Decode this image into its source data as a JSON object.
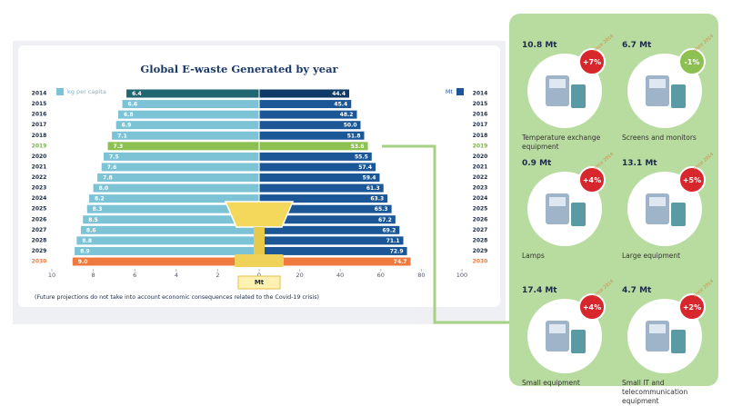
{
  "chart_data": {
    "type": "butterfly",
    "title": "Global E-waste Generated by year",
    "categories": [
      "2014",
      "2015",
      "2016",
      "2017",
      "2018",
      "2019",
      "2020",
      "2021",
      "2022",
      "2023",
      "2024",
      "2025",
      "2026",
      "2027",
      "2028",
      "2029",
      "2030"
    ],
    "series": [
      {
        "name": "kg per capita",
        "color": "#7cc3d6",
        "side": "left",
        "values": [
          6.4,
          6.6,
          6.8,
          6.9,
          7.1,
          7.3,
          7.5,
          7.6,
          7.8,
          8.0,
          8.2,
          8.3,
          8.5,
          8.6,
          8.8,
          8.9,
          9.0
        ],
        "value_labels": [
          "6.4",
          "6.6",
          "6.8",
          "6.9",
          "7.1",
          "7.3",
          "7.5",
          "7.6",
          "7.8",
          "8.0",
          "8.2",
          "8.3",
          "8.5",
          "8.6",
          "8.8",
          "8.9",
          "9.0"
        ],
        "xlim": [
          0,
          10
        ],
        "xticks": [
          10,
          8,
          6,
          4,
          2
        ]
      },
      {
        "name": "Mt",
        "color": "#1b5796",
        "side": "right",
        "values": [
          44.4,
          45.4,
          48.2,
          50.0,
          51.8,
          53.6,
          55.5,
          57.4,
          59.4,
          61.3,
          63.3,
          65.3,
          67.2,
          69.2,
          71.1,
          72.9,
          74.7
        ],
        "value_labels": [
          "44.4",
          "45.4",
          "48.2",
          "50.0",
          "51.8",
          "53.6",
          "55.5",
          "57.4",
          "59.4",
          "61.3",
          "63.3",
          "65.3",
          "67.2",
          "69.2",
          "71.1",
          "72.9",
          "74.7"
        ],
        "xlim": [
          0,
          100
        ],
        "xticks": [
          0,
          20,
          40,
          60,
          80,
          100
        ]
      }
    ],
    "highlights": [
      {
        "index": 0,
        "left": "#1f6670",
        "right": "#0e3a68"
      },
      {
        "index": 5,
        "left": "#8cc152",
        "right": "#8cc152",
        "year_color": "#7ab342"
      },
      {
        "index": 16,
        "left": "#f07a3e",
        "right": "#f07a3e",
        "year_color": "#f07a3e"
      }
    ],
    "axis_label": "Mt",
    "note": "(Future projections do not take into account economic consequences related to the Covid-19 crisis)"
  },
  "panel": {
    "items": [
      {
        "amount": "10.8 Mt",
        "change": "+7%",
        "since": "since 2014",
        "badge_color": "#d7262c",
        "label": "Temperature exchange equipment"
      },
      {
        "amount": "6.7 Mt",
        "change": "-1%",
        "since": "since 2014",
        "badge_color": "#8cc152",
        "label": "Screens and monitors"
      },
      {
        "amount": "0.9 Mt",
        "change": "+4%",
        "since": "since 2014",
        "badge_color": "#d7262c",
        "label": "Lamps"
      },
      {
        "amount": "13.1 Mt",
        "change": "+5%",
        "since": "since 2014",
        "badge_color": "#d7262c",
        "label": "Large equipment"
      },
      {
        "amount": "17.4 Mt",
        "change": "+4%",
        "since": "since 2014",
        "badge_color": "#d7262c",
        "label": "Small equipment"
      },
      {
        "amount": "4.7 Mt",
        "change": "+2%",
        "since": "since 2014",
        "badge_color": "#d7262c",
        "label": "Small IT and telecommunication equipment"
      }
    ]
  }
}
